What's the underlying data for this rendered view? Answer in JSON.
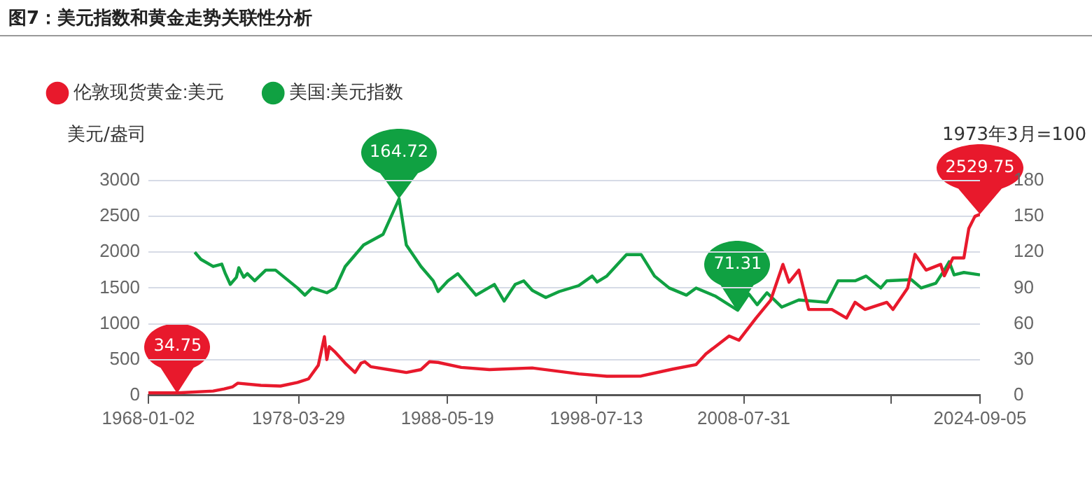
{
  "chart_data": {
    "type": "line",
    "title": "图7：美元指数和黄金走势关联性分析",
    "ylabel": "美元/盎司",
    "y2label": "1973年3月=100",
    "xlim": [
      "1968-01-02",
      "2024-09-05"
    ],
    "xticks": [
      {
        "value": "1968-01-02",
        "label": "1968-01-02"
      },
      {
        "value": "1978-03-29",
        "label": "1978-03-29"
      },
      {
        "value": "1988-05-19",
        "label": "1988-05-19"
      },
      {
        "value": "1998-07-13",
        "label": "1998-07-13"
      },
      {
        "value": "2008-07-31",
        "label": "2008-07-31"
      },
      {
        "value": "2018-08-20",
        "label": null
      },
      {
        "value": "2024-09-05",
        "label": "2024-09-05"
      }
    ],
    "ylim": [
      0,
      3000
    ],
    "yticks": [
      0,
      500,
      1000,
      1500,
      2000,
      2500,
      3000
    ],
    "y2lim": [
      0,
      180
    ],
    "y2ticks": [
      0,
      30,
      60,
      90,
      120,
      150,
      180
    ],
    "grid": "y",
    "legend": "top left",
    "marker": "none",
    "line_style": "solid",
    "series": [
      {
        "name": "伦敦现货黄金:美元",
        "color": "#e8192c",
        "x": [
          "1968-01-02",
          "1970-01",
          "1972-06",
          "1973-03",
          "1973-10",
          "1974-02",
          "1975-09",
          "1977-01",
          "1978-03",
          "1978-12",
          "1979-08",
          "1980-01",
          "1980-03",
          "1980-05",
          "1980-10",
          "1981-06",
          "1982-02",
          "1982-07",
          "1982-10",
          "1983-03",
          "1984-09",
          "1985-08",
          "1986-08",
          "1987-03",
          "1987-10",
          "1989-05",
          "1991-04",
          "1994-03",
          "1997-05",
          "1999-04",
          "2001-08",
          "2003-10",
          "2005-05",
          "2006-01",
          "2007-08",
          "2008-04",
          "2009-06",
          "2010-06",
          "2011-04",
          "2011-09",
          "2012-05",
          "2013-01",
          "2014-08",
          "2015-08",
          "2016-03",
          "2016-11",
          "2018-05",
          "2018-10",
          "2019-10",
          "2020-04",
          "2021-01",
          "2022-01",
          "2022-04",
          "2022-11",
          "2023-08",
          "2023-12",
          "2024-05",
          "2024-09-05"
        ],
        "values": [
          35,
          34.75,
          60,
          90,
          120,
          170,
          140,
          130,
          180,
          230,
          420,
          820,
          500,
          680,
          600,
          450,
          320,
          450,
          470,
          400,
          350,
          320,
          360,
          470,
          460,
          390,
          360,
          383,
          300,
          267,
          270,
          367,
          430,
          580,
          830,
          770,
          1080,
          1330,
          1830,
          1580,
          1750,
          1200,
          1200,
          1080,
          1300,
          1200,
          1300,
          1200,
          1500,
          1970,
          1750,
          1830,
          1670,
          1920,
          1920,
          2330,
          2500,
          2529.75
        ],
        "value_labels": [
          null,
          "34.75",
          null,
          null,
          null,
          null,
          null,
          null,
          null,
          null,
          null,
          null,
          null,
          null,
          null,
          null,
          null,
          null,
          null,
          null,
          null,
          null,
          null,
          null,
          null,
          null,
          null,
          null,
          null,
          null,
          null,
          null,
          null,
          null,
          null,
          null,
          null,
          null,
          null,
          null,
          null,
          null,
          null,
          null,
          null,
          null,
          null,
          null,
          null,
          null,
          null,
          null,
          null,
          null,
          null,
          null,
          null,
          "2529.75"
        ]
      },
      {
        "name": "美国:美元指数",
        "color": "#10a142",
        "axis": "y2",
        "x": [
          "1971-03",
          "1971-08",
          "1972-06",
          "1973-01",
          "1973-04",
          "1973-08",
          "1974-01",
          "1974-03",
          "1974-07",
          "1974-10",
          "1975-04",
          "1976-01",
          "1976-09",
          "1978-03",
          "1978-09",
          "1979-03",
          "1980-03",
          "1980-10",
          "1981-06",
          "1982-09",
          "1984-01",
          "1985-02",
          "1985-08",
          "1986-08",
          "1987-06",
          "1987-10",
          "1988-06",
          "1989-02",
          "1990-05",
          "1991-08",
          "1992-04",
          "1993-01",
          "1993-08",
          "1994-03",
          "1995-02",
          "1996-01",
          "1997-05",
          "1998-04",
          "1998-08",
          "1999-04",
          "2000-08",
          "2001-08",
          "2002-07",
          "2003-07",
          "2004-09",
          "2005-05",
          "2006-09",
          "2008-03",
          "2008-12",
          "2009-07",
          "2010-03",
          "2011-03",
          "2012-05",
          "2014-04",
          "2015-01",
          "2016-03",
          "2016-12",
          "2017-12",
          "2018-05",
          "2020-01",
          "2020-09",
          "2021-09",
          "2022-04",
          "2022-08",
          "2022-12",
          "2023-08",
          "2024-09-05"
        ],
        "values": [
          120,
          114,
          108,
          110,
          102,
          93,
          99,
          107,
          99,
          102,
          96,
          105,
          105,
          90,
          84,
          90,
          86,
          90,
          108,
          126,
          135,
          164.72,
          126,
          108,
          96,
          87,
          96,
          102,
          84,
          93,
          79,
          93,
          96,
          88,
          82,
          87,
          92,
          100,
          95,
          100,
          118,
          118,
          100,
          90,
          84,
          90,
          83,
          71.31,
          85,
          76,
          86,
          74,
          80,
          78,
          96,
          96,
          100,
          90,
          96,
          97,
          90,
          94,
          105,
          112,
          101,
          103,
          101
        ],
        "value_labels": [
          null,
          null,
          null,
          null,
          null,
          null,
          null,
          null,
          null,
          null,
          null,
          null,
          null,
          null,
          null,
          null,
          null,
          null,
          null,
          null,
          null,
          "164.72",
          null,
          null,
          null,
          null,
          null,
          null,
          null,
          null,
          null,
          null,
          null,
          null,
          null,
          null,
          null,
          null,
          null,
          null,
          null,
          null,
          null,
          null,
          null,
          null,
          null,
          "71.31",
          null,
          null,
          null,
          null,
          null,
          null,
          null,
          null,
          null,
          null,
          null,
          null,
          null,
          null,
          null,
          null,
          null,
          null,
          null
        ]
      }
    ]
  }
}
